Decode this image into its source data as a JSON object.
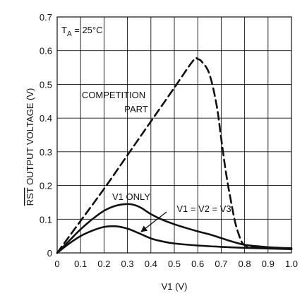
{
  "chart_data": {
    "type": "line",
    "xlabel": "V1 (V)",
    "ylabel": "RST OUTPUT VOLTAGE (V)",
    "ylabel_overline": "RST",
    "ylabel_rest": " OUTPUT VOLTAGE (V)",
    "xlim": [
      0,
      1.0
    ],
    "ylim": [
      0,
      0.7
    ],
    "xticks": [
      "0",
      "0.1",
      "0.2",
      "0.3",
      "0.4",
      "0.5",
      "0.6",
      "0.7",
      "0.8",
      "0.9",
      "1.0"
    ],
    "yticks": [
      "0",
      "0.1",
      "0.2",
      "0.3",
      "0.4",
      "0.5",
      "0.6",
      "0.7"
    ],
    "grid": true,
    "condition": {
      "prefix": "T",
      "subscript": "A",
      "suffix": " = 25°C"
    },
    "series": [
      {
        "name": "COMPETITION PART",
        "style": "dashed",
        "x": [
          0,
          0.1,
          0.2,
          0.3,
          0.4,
          0.5,
          0.58,
          0.6,
          0.62,
          0.65,
          0.68,
          0.7,
          0.72,
          0.74,
          0.76,
          0.78,
          0.79,
          0.8,
          0.81,
          0.83,
          0.85,
          0.9,
          1.0
        ],
        "y": [
          0,
          0.095,
          0.19,
          0.29,
          0.39,
          0.49,
          0.57,
          0.575,
          0.565,
          0.53,
          0.44,
          0.34,
          0.24,
          0.16,
          0.09,
          0.045,
          0.03,
          0.023,
          0.02,
          0.018,
          0.017,
          0.015,
          0.013
        ]
      },
      {
        "name": "V1 ONLY",
        "style": "solid",
        "x": [
          0,
          0.05,
          0.1,
          0.15,
          0.2,
          0.25,
          0.3,
          0.33,
          0.36,
          0.4,
          0.45,
          0.5,
          0.55,
          0.6,
          0.65,
          0.7,
          0.75,
          0.8,
          0.85,
          0.9,
          0.95,
          1.0
        ],
        "y": [
          0,
          0.035,
          0.07,
          0.1,
          0.125,
          0.14,
          0.145,
          0.142,
          0.133,
          0.115,
          0.098,
          0.085,
          0.074,
          0.064,
          0.055,
          0.044,
          0.033,
          0.024,
          0.02,
          0.017,
          0.015,
          0.014
        ]
      },
      {
        "name": "V1 = V2 = V3",
        "style": "solid",
        "x": [
          0,
          0.05,
          0.1,
          0.15,
          0.2,
          0.25,
          0.3,
          0.35,
          0.4,
          0.45,
          0.5,
          0.6,
          0.7,
          0.8,
          0.9,
          1.0
        ],
        "y": [
          0,
          0.027,
          0.05,
          0.066,
          0.077,
          0.079,
          0.072,
          0.058,
          0.043,
          0.034,
          0.028,
          0.022,
          0.018,
          0.015,
          0.013,
          0.011
        ]
      }
    ],
    "annotations": [
      {
        "name": "competition-label",
        "lines": [
          "COMPETITION",
          "PART"
        ]
      },
      {
        "name": "v1-only-label",
        "lines": [
          "V1 ONLY"
        ]
      },
      {
        "name": "v1v2v3-label",
        "lines": [
          "V1 = V2 = V3"
        ]
      }
    ]
  }
}
